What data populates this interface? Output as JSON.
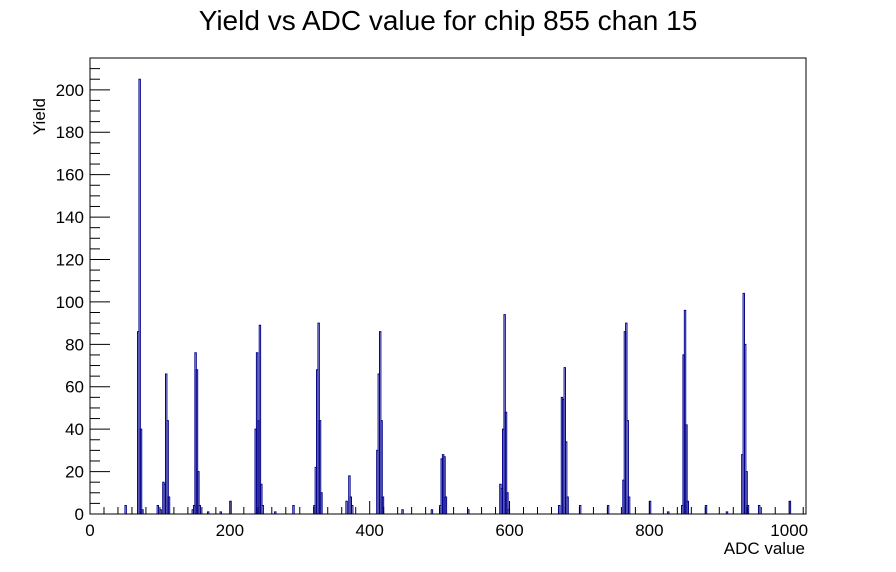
{
  "chart_data": {
    "type": "bar",
    "title": "Yield vs ADC value for chip 855 chan 15",
    "xlabel": "ADC value",
    "ylabel": "Yield",
    "xlim": [
      0,
      1024
    ],
    "ylim": [
      0,
      215
    ],
    "x_ticks": [
      0,
      200,
      400,
      600,
      800,
      1000
    ],
    "y_ticks": [
      0,
      20,
      40,
      60,
      80,
      100,
      120,
      140,
      160,
      180,
      200
    ],
    "grid": false,
    "line_color": "#00008b",
    "bin_width": 2,
    "bins": [
      [
        50,
        4
      ],
      [
        68,
        86
      ],
      [
        70,
        205
      ],
      [
        72,
        40
      ],
      [
        74,
        2
      ],
      [
        96,
        4
      ],
      [
        100,
        2
      ],
      [
        104,
        15
      ],
      [
        106,
        14
      ],
      [
        108,
        66
      ],
      [
        110,
        44
      ],
      [
        112,
        8
      ],
      [
        146,
        2
      ],
      [
        148,
        4
      ],
      [
        150,
        76
      ],
      [
        152,
        68
      ],
      [
        154,
        20
      ],
      [
        156,
        4
      ],
      [
        168,
        1
      ],
      [
        186,
        1
      ],
      [
        200,
        6
      ],
      [
        236,
        40
      ],
      [
        238,
        76
      ],
      [
        240,
        44
      ],
      [
        242,
        89
      ],
      [
        244,
        14
      ],
      [
        246,
        4
      ],
      [
        264,
        1
      ],
      [
        290,
        4
      ],
      [
        320,
        4
      ],
      [
        322,
        22
      ],
      [
        324,
        68
      ],
      [
        326,
        90
      ],
      [
        328,
        44
      ],
      [
        330,
        10
      ],
      [
        366,
        6
      ],
      [
        370,
        18
      ],
      [
        372,
        8
      ],
      [
        374,
        4
      ],
      [
        410,
        30
      ],
      [
        412,
        66
      ],
      [
        414,
        86
      ],
      [
        416,
        44
      ],
      [
        418,
        8
      ],
      [
        446,
        2
      ],
      [
        488,
        2
      ],
      [
        500,
        4
      ],
      [
        502,
        26
      ],
      [
        504,
        28
      ],
      [
        506,
        27
      ],
      [
        508,
        8
      ],
      [
        540,
        2
      ],
      [
        586,
        14
      ],
      [
        588,
        12
      ],
      [
        590,
        40
      ],
      [
        592,
        94
      ],
      [
        594,
        48
      ],
      [
        596,
        10
      ],
      [
        598,
        2
      ],
      [
        670,
        4
      ],
      [
        674,
        55
      ],
      [
        676,
        54
      ],
      [
        678,
        69
      ],
      [
        680,
        34
      ],
      [
        682,
        8
      ],
      [
        700,
        4
      ],
      [
        740,
        4
      ],
      [
        762,
        16
      ],
      [
        764,
        86
      ],
      [
        766,
        90
      ],
      [
        768,
        44
      ],
      [
        770,
        8
      ],
      [
        800,
        6
      ],
      [
        826,
        1
      ],
      [
        846,
        4
      ],
      [
        848,
        75
      ],
      [
        850,
        96
      ],
      [
        852,
        42
      ],
      [
        854,
        6
      ],
      [
        880,
        4
      ],
      [
        910,
        1
      ],
      [
        932,
        28
      ],
      [
        934,
        104
      ],
      [
        936,
        80
      ],
      [
        938,
        20
      ],
      [
        940,
        4
      ],
      [
        956,
        4
      ],
      [
        1000,
        6
      ]
    ]
  }
}
